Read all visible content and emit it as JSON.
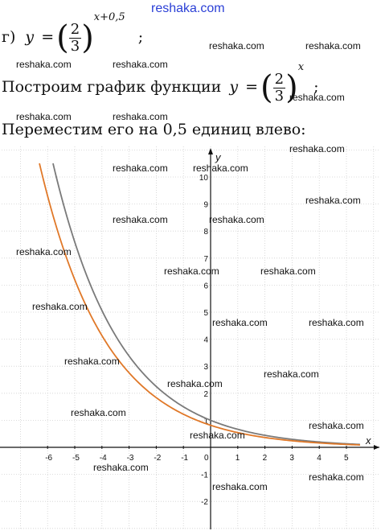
{
  "watermark_top": "reshaka.com",
  "watermark": "reshaka.com",
  "item_label": "г)",
  "fn_y": "y",
  "eq": "=",
  "frac_num": "2",
  "frac_den": "3",
  "exp1": "x+0,5",
  "semi": ";",
  "line2_text": "Построим график функции",
  "exp2": "x",
  "line3_text": "Переместим его на 0,5 единиц влево:",
  "axis_x_label": "x",
  "axis_y_label": "y",
  "x_ticks": [
    "-6",
    "-5",
    "-4",
    "-3",
    "-2",
    "-1",
    "0",
    "1",
    "2",
    "3",
    "4",
    "5"
  ],
  "y_ticks": [
    "-2",
    "-1",
    "1",
    "2",
    "3",
    "4",
    "5",
    "6",
    "7",
    "8",
    "9",
    "10"
  ],
  "colors": {
    "original_curve": "#7a7a7a",
    "shifted_curve": "#e07828",
    "grid": "#d0d0d0",
    "watermark_top": "#2a3fd6"
  },
  "chart_data": {
    "type": "line",
    "xlim": [
      -7,
      6
    ],
    "ylim": [
      -3,
      11
    ],
    "grid": true,
    "series": [
      {
        "function": "(2/3)^x",
        "x": [
          -5.8,
          -5,
          -4,
          -3,
          -2,
          -1,
          0,
          1,
          2,
          3,
          4,
          5,
          5.5
        ],
        "y": [
          10.5,
          7.59,
          5.06,
          3.38,
          2.25,
          1.5,
          1,
          0.67,
          0.44,
          0.3,
          0.2,
          0.13,
          0.11
        ]
      },
      {
        "function": "(2/3)^(x+0.5)",
        "x": [
          -6.3,
          -5,
          -4,
          -3,
          -2,
          -1,
          0,
          1,
          2,
          3,
          4,
          5,
          5.5
        ],
        "y": [
          10.5,
          6.2,
          4.13,
          2.76,
          1.84,
          1.22,
          0.82,
          0.54,
          0.36,
          0.24,
          0.16,
          0.11,
          0.09
        ]
      }
    ]
  }
}
